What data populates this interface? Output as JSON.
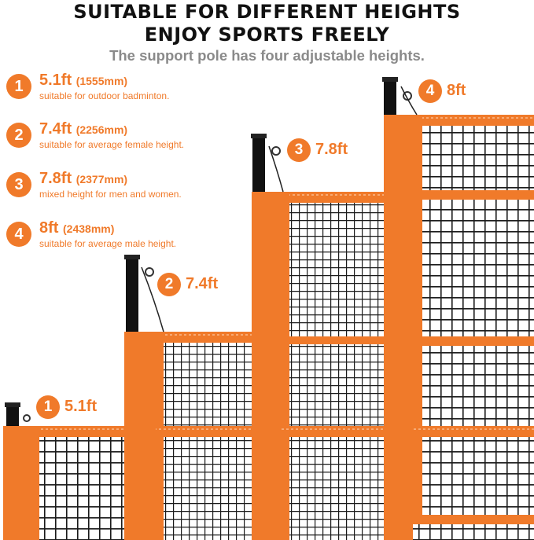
{
  "header": {
    "line1": "SUITABLE FOR DIFFERENT HEIGHTS",
    "line2": "ENJOY SPORTS FREELY",
    "subtitle": "The support pole has four adjustable heights."
  },
  "colors": {
    "accent": "#f07a2a",
    "net": "#1a1a1a",
    "pole": "#111111"
  },
  "heights": [
    {
      "badge": "1",
      "value": "5.1ft",
      "metric": "(1555mm)",
      "desc": "suitable for outdoor badminton.",
      "callout": "5.1ft"
    },
    {
      "badge": "2",
      "value": "7.4ft",
      "metric": "(2256mm)",
      "desc": "suitable for average female height.",
      "callout": "7.4ft"
    },
    {
      "badge": "3",
      "value": "7.8ft",
      "metric": "(2377mm)",
      "desc": "mixed height for men and women.",
      "callout": "7.8ft"
    },
    {
      "badge": "4",
      "value": "8ft",
      "metric": "(2438mm)",
      "desc": "suitable for average male height.",
      "callout": "8ft"
    }
  ]
}
